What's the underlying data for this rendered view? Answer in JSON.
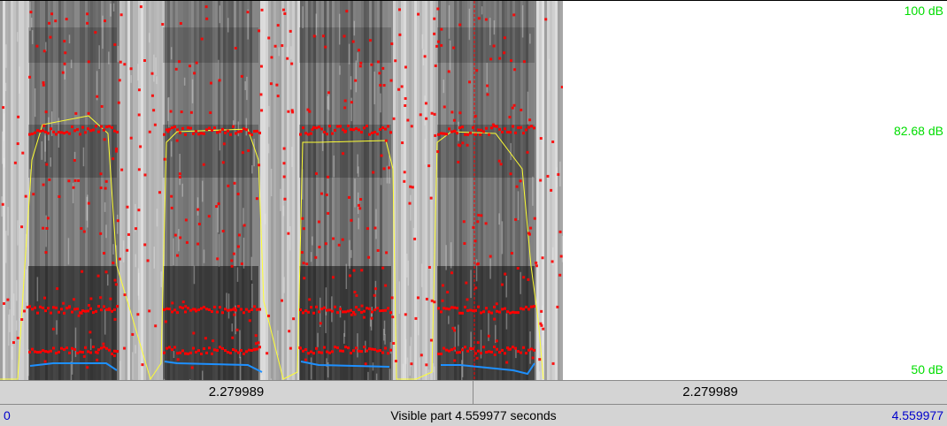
{
  "spectrogram": {
    "db_top": "100 dB",
    "db_mid": "82.68 dB",
    "db_bottom": "50 dB"
  },
  "segments": {
    "left_duration": "2.279989",
    "right_duration": "2.279989"
  },
  "visible": {
    "start": "0",
    "label": "Visible part 4.559977 seconds",
    "end": "4.559977"
  },
  "colors": {
    "pitch": "#1e90ff",
    "intensity": "#ffff33",
    "formants": "#ff0000",
    "db_labels": "#00dd00",
    "time_labels": "#0000cc",
    "cursor": "#ff0000"
  }
}
